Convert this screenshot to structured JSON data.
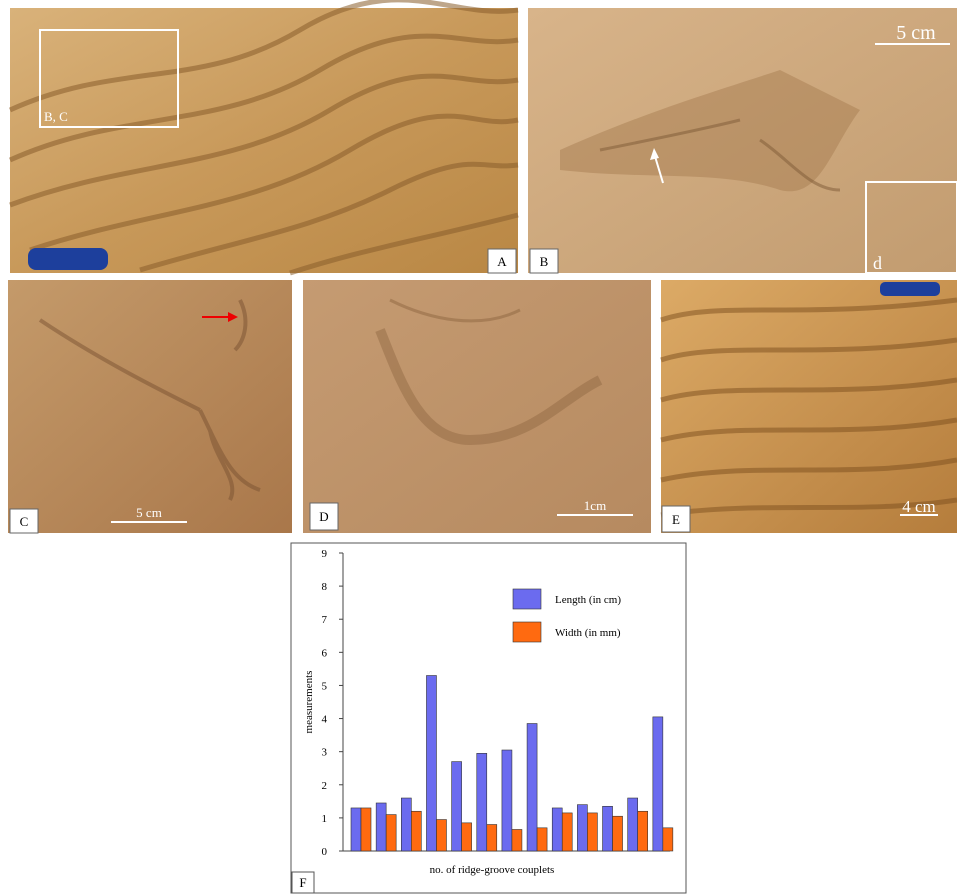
{
  "panels": [
    {
      "label": "A",
      "inset_label": "B, C"
    },
    {
      "label": "B",
      "scale": "5 cm",
      "inset_label": "d"
    },
    {
      "label": "C",
      "scale": "5 cm"
    },
    {
      "label": "D",
      "scale": "1cm"
    },
    {
      "label": "E",
      "scale": "4 cm"
    },
    {
      "label": "F"
    }
  ],
  "chart_data": {
    "type": "bar",
    "y_label": "measurements",
    "x_label": "no. of ridge-groove couplets",
    "ylim": [
      0,
      9
    ],
    "yticks": [
      0,
      1,
      2,
      3,
      4,
      5,
      6,
      7,
      8,
      9
    ],
    "legend": "upper right",
    "series": [
      {
        "name": "Length (in cm)",
        "color": "#6b6bef",
        "values": [
          1.3,
          1.45,
          1.6,
          5.3,
          2.7,
          2.95,
          3.05,
          3.85,
          1.3,
          1.4,
          1.35,
          1.6,
          4.05
        ]
      },
      {
        "name": "Width (in mm)",
        "color": "#ff6a10",
        "values": [
          1.3,
          1.1,
          1.2,
          0.95,
          0.85,
          0.8,
          0.65,
          0.7,
          1.15,
          1.15,
          1.05,
          1.2,
          0.7
        ]
      }
    ]
  }
}
